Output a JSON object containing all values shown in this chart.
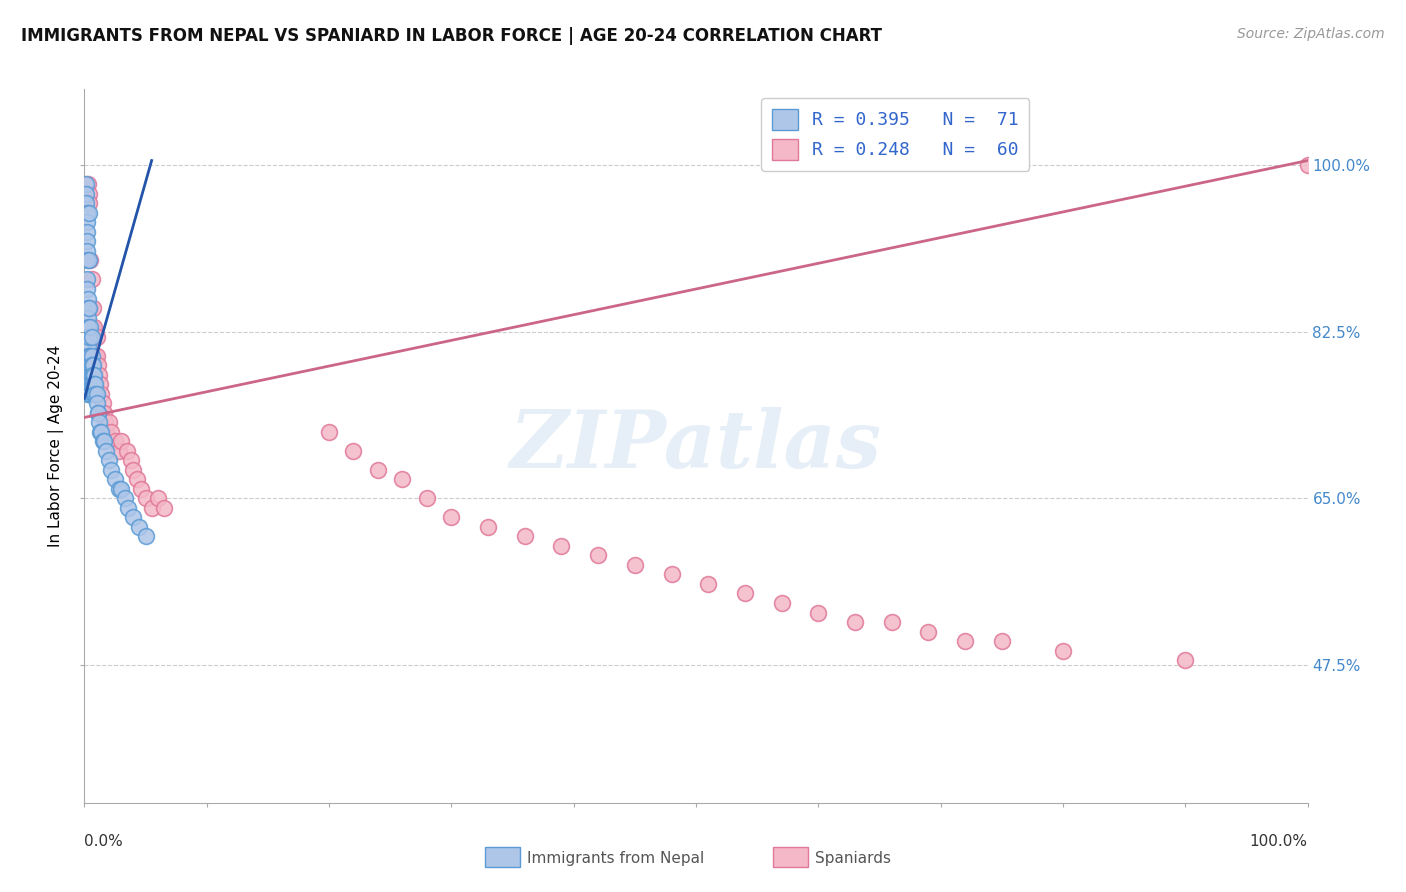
{
  "title": "IMMIGRANTS FROM NEPAL VS SPANIARD IN LABOR FORCE | AGE 20-24 CORRELATION CHART",
  "source": "Source: ZipAtlas.com",
  "ylabel": "In Labor Force | Age 20-24",
  "ytick_labels": [
    "47.5%",
    "65.0%",
    "82.5%",
    "100.0%"
  ],
  "ytick_vals": [
    0.475,
    0.65,
    0.825,
    1.0
  ],
  "legend_line1": "R = 0.395   N =  71",
  "legend_line2": "R = 0.248   N =  60",
  "nepal_color": "#aec6e8",
  "nepal_edge": "#5b9bd5",
  "spaniard_color": "#f4b8c8",
  "spaniard_edge": "#e07898",
  "nepal_line_color": "#2255aa",
  "spaniard_line_color": "#cc6688",
  "background": "#ffffff",
  "xlim": [
    0.0,
    1.0
  ],
  "ylim": [
    0.33,
    1.08
  ],
  "nepal_x": [
    0.001,
    0.001,
    0.001,
    0.002,
    0.002,
    0.002,
    0.002,
    0.002,
    0.002,
    0.002,
    0.002,
    0.003,
    0.003,
    0.003,
    0.003,
    0.003,
    0.003,
    0.003,
    0.003,
    0.003,
    0.003,
    0.003,
    0.004,
    0.004,
    0.004,
    0.004,
    0.004,
    0.004,
    0.004,
    0.004,
    0.004,
    0.005,
    0.005,
    0.005,
    0.005,
    0.005,
    0.005,
    0.006,
    0.006,
    0.006,
    0.006,
    0.006,
    0.007,
    0.007,
    0.007,
    0.007,
    0.008,
    0.008,
    0.008,
    0.009,
    0.009,
    0.01,
    0.01,
    0.011,
    0.011,
    0.012,
    0.013,
    0.014,
    0.015,
    0.016,
    0.018,
    0.02,
    0.022,
    0.025,
    0.028,
    0.03,
    0.033,
    0.036,
    0.04,
    0.045,
    0.05
  ],
  "nepal_y": [
    0.98,
    0.97,
    0.96,
    0.95,
    0.94,
    0.93,
    0.92,
    0.91,
    0.9,
    0.88,
    0.87,
    0.86,
    0.85,
    0.84,
    0.83,
    0.82,
    0.81,
    0.8,
    0.79,
    0.78,
    0.77,
    0.76,
    0.95,
    0.9,
    0.85,
    0.82,
    0.8,
    0.79,
    0.78,
    0.77,
    0.76,
    0.83,
    0.8,
    0.79,
    0.78,
    0.77,
    0.76,
    0.82,
    0.8,
    0.79,
    0.78,
    0.77,
    0.79,
    0.78,
    0.77,
    0.76,
    0.78,
    0.77,
    0.76,
    0.77,
    0.76,
    0.76,
    0.75,
    0.74,
    0.74,
    0.73,
    0.72,
    0.72,
    0.71,
    0.71,
    0.7,
    0.69,
    0.68,
    0.67,
    0.66,
    0.66,
    0.65,
    0.64,
    0.63,
    0.62,
    0.61
  ],
  "spaniard_x": [
    0.003,
    0.004,
    0.004,
    0.005,
    0.005,
    0.006,
    0.006,
    0.007,
    0.007,
    0.008,
    0.008,
    0.009,
    0.01,
    0.01,
    0.011,
    0.012,
    0.013,
    0.014,
    0.015,
    0.016,
    0.017,
    0.018,
    0.02,
    0.022,
    0.025,
    0.028,
    0.03,
    0.035,
    0.038,
    0.04,
    0.043,
    0.046,
    0.05,
    0.055,
    0.06,
    0.065,
    0.2,
    0.22,
    0.24,
    0.26,
    0.28,
    0.3,
    0.33,
    0.36,
    0.39,
    0.42,
    0.45,
    0.48,
    0.51,
    0.54,
    0.57,
    0.6,
    0.63,
    0.66,
    0.69,
    0.72,
    0.75,
    0.8,
    0.9,
    1.0
  ],
  "spaniard_y": [
    0.98,
    0.97,
    0.96,
    0.9,
    0.85,
    0.88,
    0.83,
    0.85,
    0.82,
    0.83,
    0.8,
    0.8,
    0.82,
    0.8,
    0.79,
    0.78,
    0.77,
    0.76,
    0.75,
    0.74,
    0.73,
    0.72,
    0.73,
    0.72,
    0.71,
    0.7,
    0.71,
    0.7,
    0.69,
    0.68,
    0.67,
    0.66,
    0.65,
    0.64,
    0.65,
    0.64,
    0.72,
    0.7,
    0.68,
    0.67,
    0.65,
    0.63,
    0.62,
    0.61,
    0.6,
    0.59,
    0.58,
    0.57,
    0.56,
    0.55,
    0.54,
    0.53,
    0.52,
    0.52,
    0.51,
    0.5,
    0.5,
    0.49,
    0.48,
    1.0
  ],
  "nepal_trend_x0": 0.0,
  "nepal_trend_y0": 0.755,
  "nepal_trend_x1": 0.055,
  "nepal_trend_y1": 1.005,
  "spaniard_trend_x0": 0.0,
  "spaniard_trend_y0": 0.735,
  "spaniard_trend_x1": 1.0,
  "spaniard_trend_y1": 1.005
}
